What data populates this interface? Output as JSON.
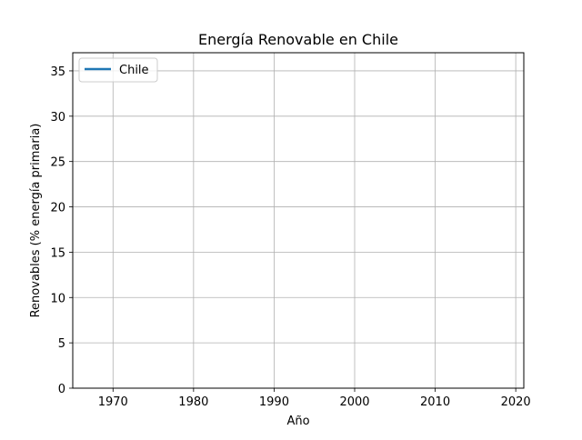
{
  "chart_data": {
    "type": "line",
    "title": "Energía Renovable en Chile",
    "xlabel": "Año",
    "ylabel": "Renovables (% energía primaria)",
    "xlim": [
      1965,
      2021
    ],
    "ylim": [
      0,
      37
    ],
    "xticks": [
      1970,
      1980,
      1990,
      2000,
      2010,
      2020
    ],
    "yticks": [
      0,
      5,
      10,
      15,
      20,
      25,
      30,
      35
    ],
    "grid": true,
    "legend_position": "top-left",
    "series": [
      {
        "name": "Chile",
        "color": "#1f77b4",
        "x": [],
        "y": []
      }
    ]
  }
}
